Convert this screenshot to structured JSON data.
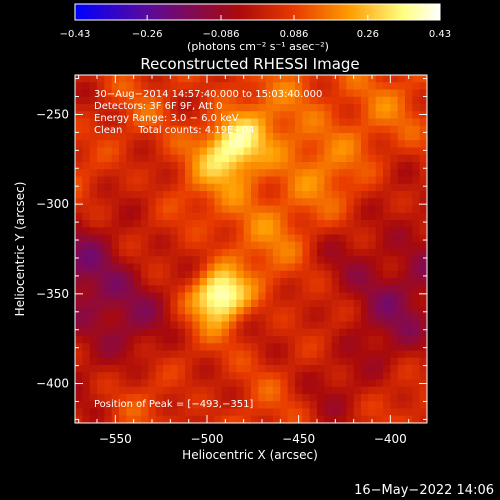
{
  "chart_data": {
    "type": "heatmap",
    "title": "Reconstructed RHESSI Image",
    "xlabel": "Heliocentric X (arcsec)",
    "ylabel": "Heliocentric Y (arcsec)",
    "xlim": [
      -572,
      -380
    ],
    "ylim": [
      -422,
      -228
    ],
    "x_ticks": [
      -550,
      -500,
      -450,
      -400
    ],
    "x_tick_labels": [
      "−550",
      "−500",
      "−450",
      "−400"
    ],
    "y_ticks": [
      -250,
      -300,
      -350,
      -400
    ],
    "y_tick_labels": [
      "−250",
      "−300",
      "−350",
      "−400"
    ],
    "colorbar": {
      "min": -0.43,
      "max": 0.43,
      "ticks": [
        -0.43,
        -0.26,
        -0.086,
        0.086,
        0.26,
        0.43
      ],
      "tick_labels": [
        "−0.43",
        "−0.26",
        "−0.086",
        "0.086",
        "0.26",
        "0.43"
      ],
      "unit_label": "(photons cm⁻² s⁻¹ asec⁻²)",
      "colors": [
        "#0000ff",
        "#5a0a9a",
        "#aa0a0a",
        "#e83a00",
        "#ff9a00",
        "#ffff80",
        "#ffffff"
      ]
    },
    "annotations": [
      "30−Aug−2014 14:57:40.000 to 15:03:40.000",
      "Detectors: 3F 6F 9F, Att 0",
      "Energy Range: 3.0 − 6.0 keV",
      "Clean     Total counts: 4.19E+04"
    ],
    "peak_label": "Position of Peak = [−493,−351]",
    "peak": [
      -493,
      -351
    ],
    "sources": [
      {
        "x": -493,
        "y": -351,
        "amp": 0.43
      },
      {
        "x": -486,
        "y": -268,
        "amp": 0.33
      }
    ]
  },
  "footer": {
    "timestamp": "16−May−2022 14:06"
  }
}
